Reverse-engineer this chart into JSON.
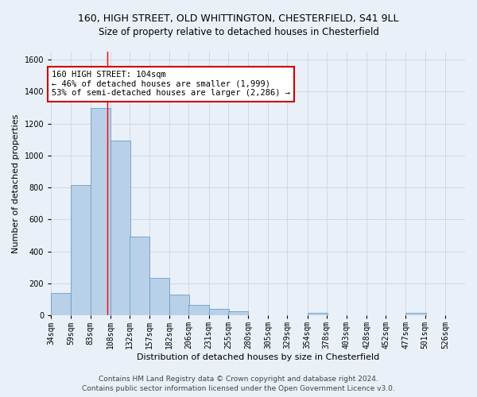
{
  "title_line1": "160, HIGH STREET, OLD WHITTINGTON, CHESTERFIELD, S41 9LL",
  "title_line2": "Size of property relative to detached houses in Chesterfield",
  "xlabel": "Distribution of detached houses by size in Chesterfield",
  "ylabel": "Number of detached properties",
  "footer1": "Contains HM Land Registry data © Crown copyright and database right 2024.",
  "footer2": "Contains public sector information licensed under the Open Government Licence v3.0.",
  "bar_left_edges": [
    34,
    59,
    83,
    108,
    132,
    157,
    182,
    206,
    231,
    255,
    280,
    305,
    329,
    354,
    378,
    403,
    428,
    452,
    477,
    501
  ],
  "bar_heights": [
    140,
    815,
    1295,
    1095,
    495,
    235,
    130,
    65,
    40,
    28,
    0,
    0,
    0,
    15,
    0,
    0,
    0,
    0,
    15,
    0
  ],
  "bin_width": 25,
  "bar_color": "#b8d0e8",
  "bar_edge_color": "#6a9fc8",
  "x_ticks": [
    34,
    59,
    83,
    108,
    132,
    157,
    182,
    206,
    231,
    255,
    280,
    305,
    329,
    354,
    378,
    403,
    428,
    452,
    477,
    501,
    526
  ],
  "x_tick_labels": [
    "34sqm",
    "59sqm",
    "83sqm",
    "108sqm",
    "132sqm",
    "157sqm",
    "182sqm",
    "206sqm",
    "231sqm",
    "255sqm",
    "280sqm",
    "305sqm",
    "329sqm",
    "354sqm",
    "378sqm",
    "403sqm",
    "428sqm",
    "452sqm",
    "477sqm",
    "501sqm",
    "526sqm"
  ],
  "ylim": [
    0,
    1650
  ],
  "xlim": [
    34,
    551
  ],
  "red_line_x": 104,
  "annotation_text": "160 HIGH STREET: 104sqm\n← 46% of detached houses are smaller (1,999)\n53% of semi-detached houses are larger (2,286) →",
  "annotation_box_facecolor": "#ffffff",
  "annotation_box_edgecolor": "#cc0000",
  "grid_color": "#d0d8e4",
  "bg_color": "#eaf0f8",
  "plot_bg_color": "#eaf0f8",
  "title_fontsize": 9,
  "subtitle_fontsize": 8.5,
  "axis_label_fontsize": 8,
  "tick_fontsize": 7,
  "footer_fontsize": 6.5,
  "annot_fontsize": 7.5
}
